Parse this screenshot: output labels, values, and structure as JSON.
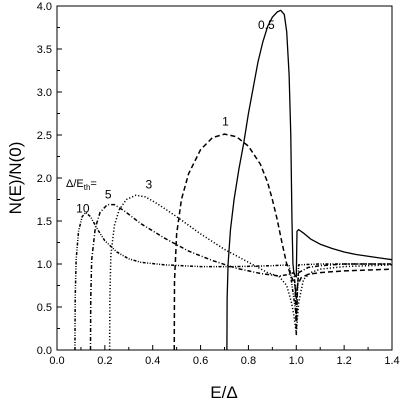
{
  "chart_data": {
    "type": "line",
    "title": "",
    "xlabel": "E/Δ",
    "ylabel": "N(E)/N(0)",
    "xlim": [
      0.0,
      1.4
    ],
    "ylim": [
      0.0,
      4.0
    ],
    "x_ticks": [
      "0.0",
      "0.2",
      "0.4",
      "0.6",
      "0.8",
      "1.0",
      "1.2",
      "1.4"
    ],
    "y_ticks": [
      "0.0",
      "0.5",
      "1.0",
      "1.5",
      "2.0",
      "2.5",
      "3.0",
      "3.5",
      "4.0"
    ],
    "grid": false,
    "legend_title": "Δ/E",
    "legend_title_subscript": "th",
    "legend_title_suffix": "=",
    "series": [
      {
        "name": "0.5",
        "style": "solid",
        "points": [
          [
            0.71,
            0.0
          ],
          [
            0.711,
            0.6
          ],
          [
            0.715,
            1.0
          ],
          [
            0.725,
            1.4
          ],
          [
            0.74,
            1.75
          ],
          [
            0.76,
            2.1
          ],
          [
            0.78,
            2.4
          ],
          [
            0.8,
            2.75
          ],
          [
            0.82,
            3.05
          ],
          [
            0.84,
            3.35
          ],
          [
            0.86,
            3.58
          ],
          [
            0.88,
            3.76
          ],
          [
            0.9,
            3.87
          ],
          [
            0.92,
            3.93
          ],
          [
            0.935,
            3.95
          ],
          [
            0.95,
            3.9
          ],
          [
            0.96,
            3.7
          ],
          [
            0.97,
            3.2
          ],
          [
            0.977,
            2.5
          ],
          [
            0.982,
            1.5
          ],
          [
            0.986,
            1.0
          ],
          [
            0.99,
            0.9
          ],
          [
            0.995,
            0.86
          ],
          [
            1.0,
            0.85
          ],
          [
            1.003,
            1.38
          ],
          [
            1.01,
            1.4
          ],
          [
            1.03,
            1.36
          ],
          [
            1.06,
            1.29
          ],
          [
            1.1,
            1.23
          ],
          [
            1.15,
            1.18
          ],
          [
            1.2,
            1.14
          ],
          [
            1.25,
            1.11
          ],
          [
            1.3,
            1.09
          ],
          [
            1.35,
            1.07
          ],
          [
            1.4,
            1.05
          ]
        ]
      },
      {
        "name": "1",
        "style": "dashed",
        "points": [
          [
            0.49,
            0.0
          ],
          [
            0.491,
            0.8
          ],
          [
            0.5,
            1.35
          ],
          [
            0.52,
            1.75
          ],
          [
            0.55,
            2.05
          ],
          [
            0.6,
            2.33
          ],
          [
            0.65,
            2.47
          ],
          [
            0.7,
            2.51
          ],
          [
            0.75,
            2.48
          ],
          [
            0.8,
            2.37
          ],
          [
            0.85,
            2.16
          ],
          [
            0.88,
            1.95
          ],
          [
            0.9,
            1.75
          ],
          [
            0.92,
            1.52
          ],
          [
            0.94,
            1.25
          ],
          [
            0.96,
            1.0
          ],
          [
            0.98,
            0.85
          ],
          [
            0.995,
            0.75
          ],
          [
            1.0,
            0.18
          ],
          [
            1.005,
            0.75
          ],
          [
            1.02,
            0.84
          ],
          [
            1.05,
            0.88
          ],
          [
            1.1,
            0.9
          ],
          [
            1.2,
            0.92
          ],
          [
            1.3,
            0.93
          ],
          [
            1.4,
            0.94
          ]
        ]
      },
      {
        "name": "3",
        "style": "dotted",
        "points": [
          [
            0.22,
            0.0
          ],
          [
            0.221,
            0.6
          ],
          [
            0.225,
            1.1
          ],
          [
            0.24,
            1.45
          ],
          [
            0.26,
            1.63
          ],
          [
            0.29,
            1.75
          ],
          [
            0.33,
            1.8
          ],
          [
            0.37,
            1.78
          ],
          [
            0.42,
            1.7
          ],
          [
            0.5,
            1.55
          ],
          [
            0.6,
            1.35
          ],
          [
            0.7,
            1.17
          ],
          [
            0.8,
            1.02
          ],
          [
            0.88,
            0.9
          ],
          [
            0.93,
            0.85
          ],
          [
            0.96,
            0.75
          ],
          [
            0.98,
            0.55
          ],
          [
            0.99,
            0.4
          ],
          [
            1.0,
            0.2
          ],
          [
            1.01,
            0.55
          ],
          [
            1.03,
            0.82
          ],
          [
            1.06,
            0.9
          ],
          [
            1.1,
            0.94
          ],
          [
            1.2,
            0.97
          ],
          [
            1.3,
            0.98
          ],
          [
            1.4,
            0.99
          ]
        ]
      },
      {
        "name": "5",
        "style": "dash-dot",
        "points": [
          [
            0.14,
            0.0
          ],
          [
            0.141,
            0.6
          ],
          [
            0.145,
            1.05
          ],
          [
            0.16,
            1.42
          ],
          [
            0.18,
            1.6
          ],
          [
            0.21,
            1.69
          ],
          [
            0.24,
            1.69
          ],
          [
            0.28,
            1.62
          ],
          [
            0.35,
            1.47
          ],
          [
            0.45,
            1.3
          ],
          [
            0.55,
            1.15
          ],
          [
            0.65,
            1.04
          ],
          [
            0.75,
            0.95
          ],
          [
            0.85,
            0.89
          ],
          [
            0.93,
            0.86
          ],
          [
            0.97,
            0.88
          ],
          [
            0.99,
            0.9
          ],
          [
            1.0,
            0.6
          ],
          [
            1.01,
            0.9
          ],
          [
            1.05,
            0.96
          ],
          [
            1.1,
            0.98
          ],
          [
            1.2,
            1.0
          ],
          [
            1.4,
            1.0
          ]
        ]
      },
      {
        "name": "10",
        "style": "dash-dot-dot",
        "points": [
          [
            0.075,
            0.0
          ],
          [
            0.076,
            0.6
          ],
          [
            0.08,
            1.05
          ],
          [
            0.09,
            1.38
          ],
          [
            0.105,
            1.55
          ],
          [
            0.12,
            1.6
          ],
          [
            0.14,
            1.55
          ],
          [
            0.17,
            1.4
          ],
          [
            0.2,
            1.27
          ],
          [
            0.25,
            1.14
          ],
          [
            0.3,
            1.06
          ],
          [
            0.35,
            1.02
          ],
          [
            0.45,
            0.99
          ],
          [
            0.6,
            0.97
          ],
          [
            0.75,
            0.97
          ],
          [
            0.9,
            0.98
          ],
          [
            0.97,
            0.99
          ],
          [
            1.0,
            0.4
          ],
          [
            1.01,
            0.99
          ],
          [
            1.1,
            1.0
          ],
          [
            1.2,
            1.0
          ],
          [
            1.4,
            1.0
          ]
        ]
      }
    ],
    "curve_labels": [
      {
        "text": "0.5",
        "x": 0.84,
        "y": 3.73
      },
      {
        "text": "1",
        "x": 0.69,
        "y": 2.61
      },
      {
        "text": "3",
        "x": 0.37,
        "y": 1.88
      },
      {
        "text": "5",
        "x": 0.2,
        "y": 1.76
      },
      {
        "text": "10",
        "x": 0.08,
        "y": 1.6
      }
    ]
  }
}
